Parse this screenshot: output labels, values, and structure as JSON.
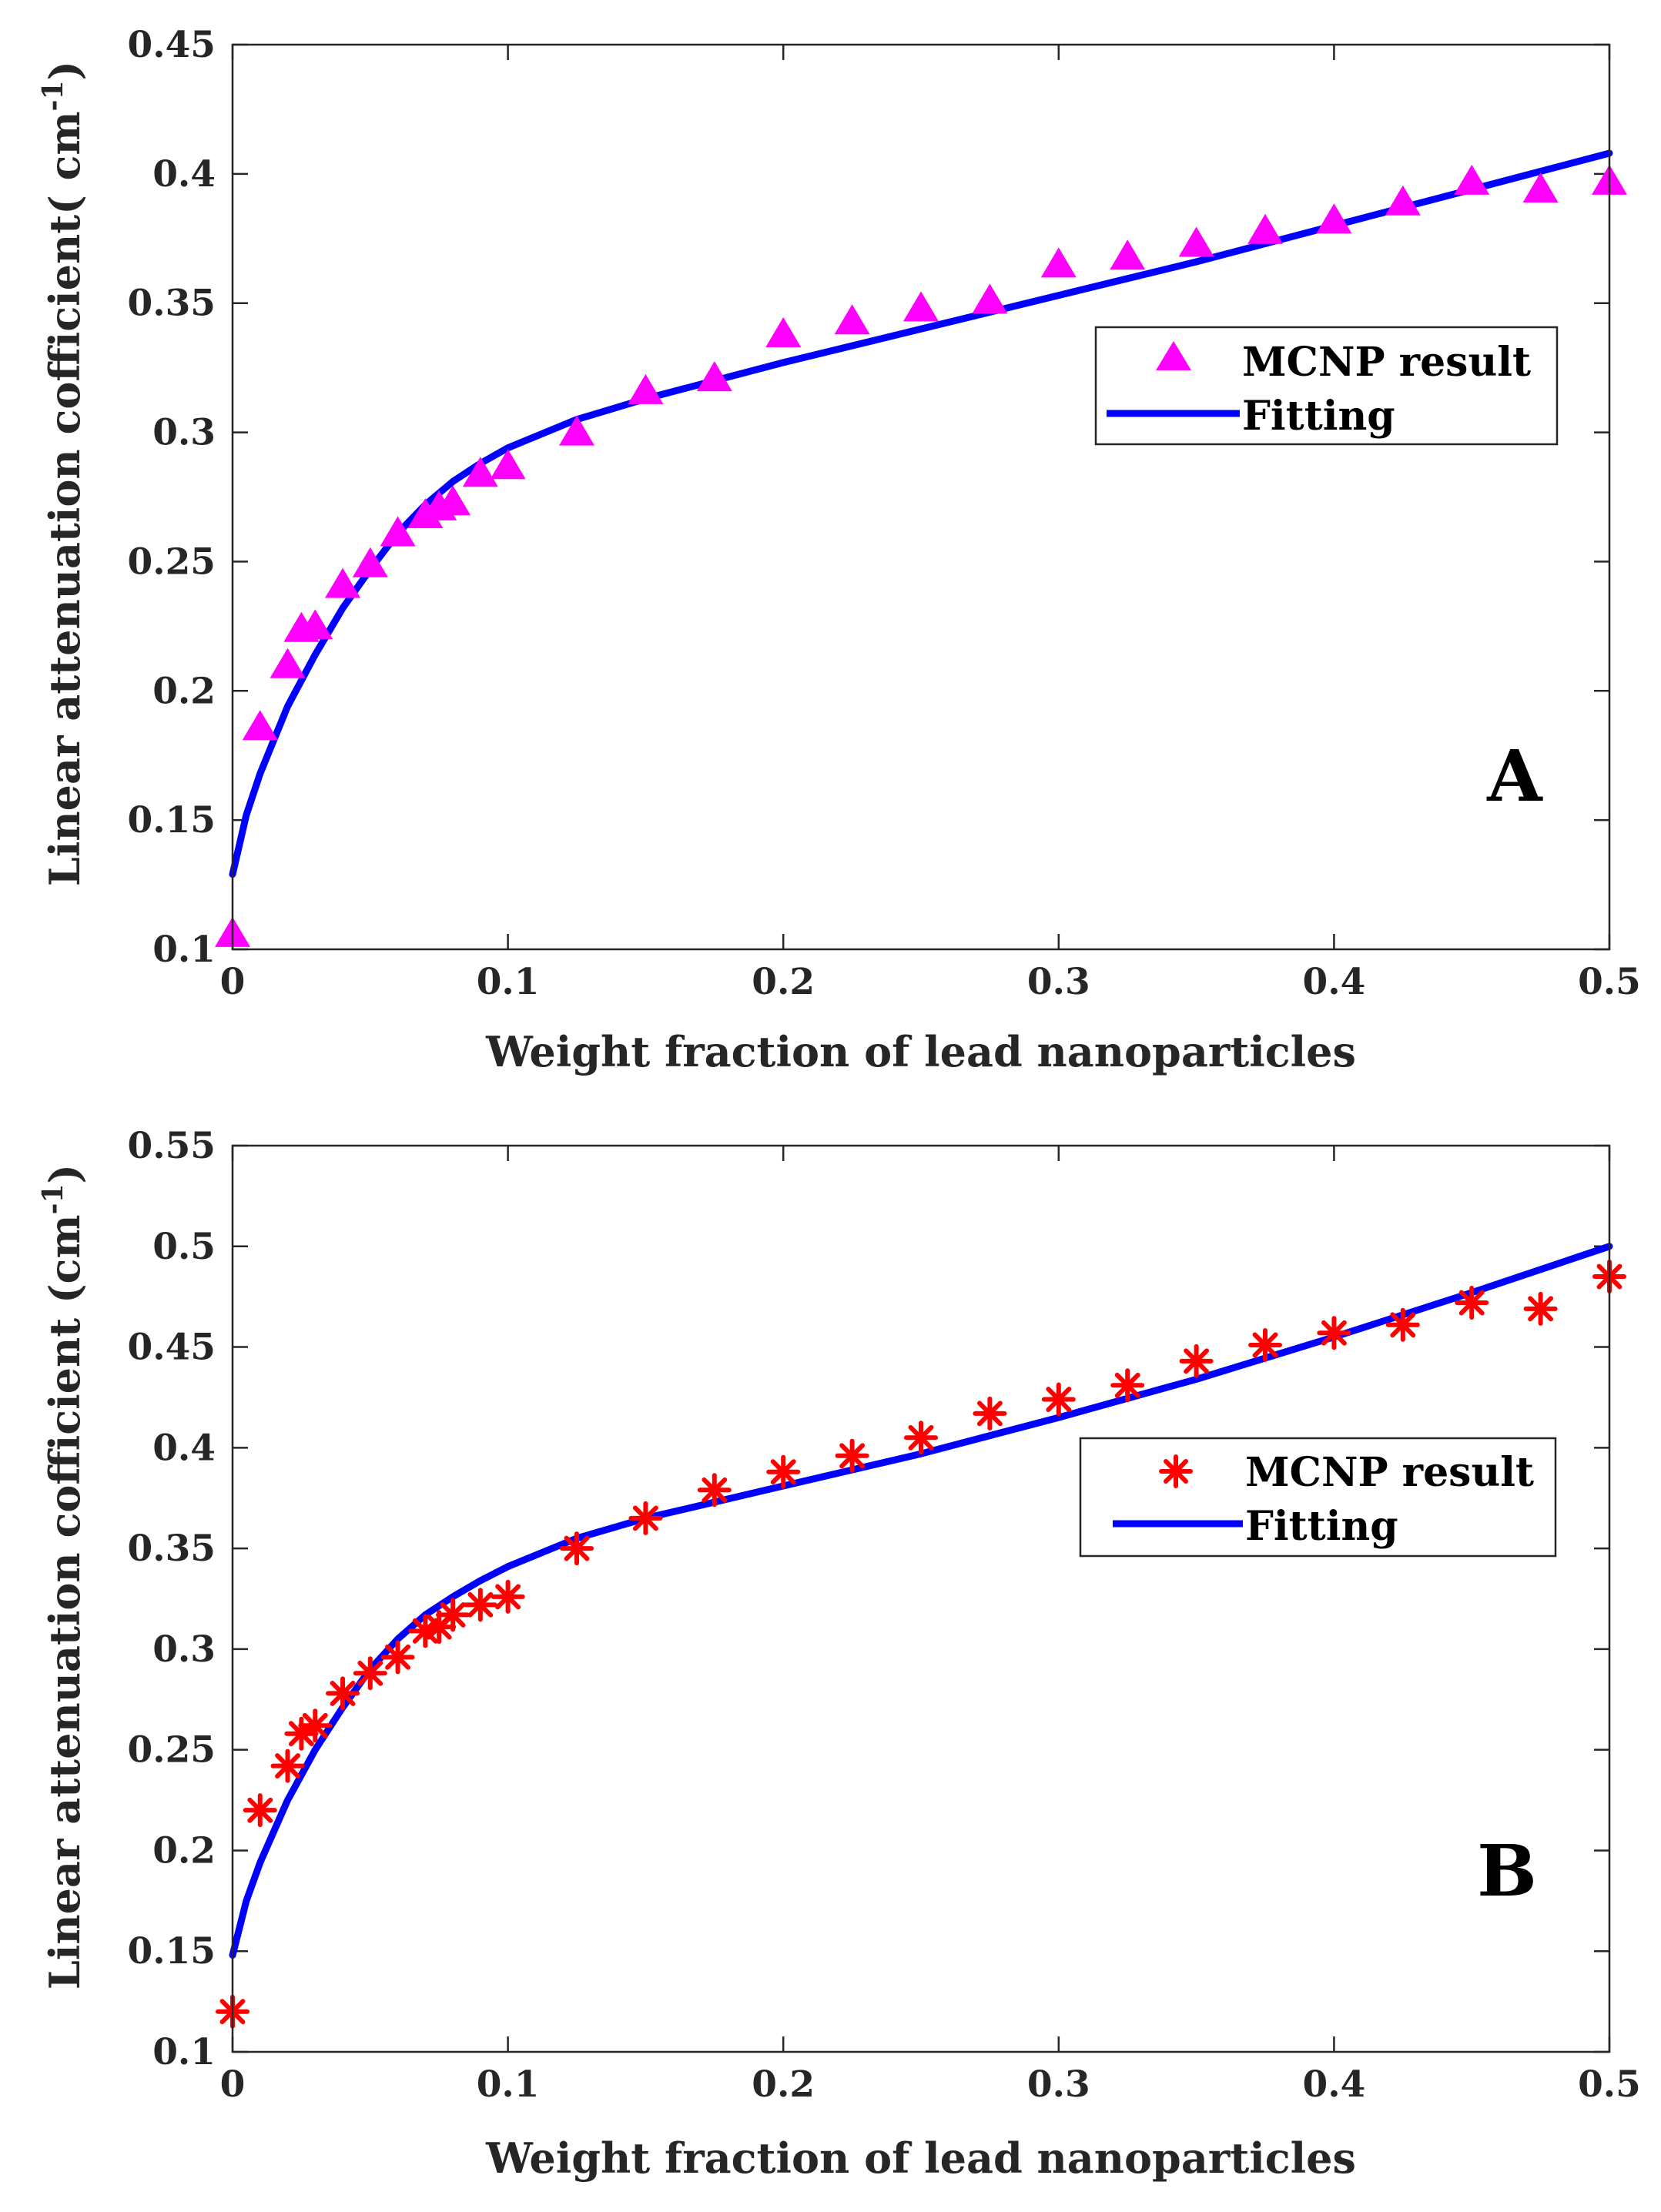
{
  "chart_data": [
    {
      "type": "scatter",
      "panel_label": "A",
      "xlabel": "Weight fraction of lead nanoparticles",
      "ylabel_main": "Linear attenuation cofficient( cm",
      "ylabel_sup": "-1",
      "ylabel_close": ")",
      "xlim": [
        0,
        0.5
      ],
      "ylim": [
        0.1,
        0.45
      ],
      "xticks": [
        0,
        0.1,
        0.2,
        0.3,
        0.4,
        0.5
      ],
      "xtick_labels": [
        "0",
        "0.1",
        "0.2",
        "0.3",
        "0.4",
        "0.5"
      ],
      "yticks": [
        0.1,
        0.15,
        0.2,
        0.25,
        0.3,
        0.35,
        0.4,
        0.45
      ],
      "ytick_labels": [
        "0.1",
        "0.15",
        "0.2",
        "0.25",
        "0.3",
        "0.35",
        "0.4",
        "0.45"
      ],
      "legend_position": "upper-right",
      "series": [
        {
          "name": "MCNP result",
          "kind": "markers",
          "marker": "triangle",
          "color": "#ff00ff",
          "x": [
            0,
            0.01,
            0.02,
            0.025,
            0.03,
            0.04,
            0.05,
            0.06,
            0.07,
            0.075,
            0.08,
            0.09,
            0.1,
            0.125,
            0.15,
            0.175,
            0.2,
            0.225,
            0.25,
            0.275,
            0.3,
            0.325,
            0.35,
            0.375,
            0.4,
            0.425,
            0.45,
            0.475,
            0.5
          ],
          "y": [
            0.106,
            0.186,
            0.21,
            0.224,
            0.225,
            0.241,
            0.249,
            0.261,
            0.268,
            0.271,
            0.273,
            0.284,
            0.287,
            0.3,
            0.316,
            0.321,
            0.338,
            0.343,
            0.348,
            0.351,
            0.365,
            0.368,
            0.373,
            0.378,
            0.382,
            0.389,
            0.397,
            0.394,
            0.397
          ]
        },
        {
          "name": "Fitting",
          "kind": "line",
          "color": "#0000ff",
          "x": [
            0,
            0.005,
            0.01,
            0.02,
            0.03,
            0.04,
            0.05,
            0.06,
            0.07,
            0.08,
            0.09,
            0.1,
            0.125,
            0.15,
            0.175,
            0.2,
            0.25,
            0.3,
            0.35,
            0.4,
            0.45,
            0.5
          ],
          "y": [
            0.129,
            0.152,
            0.168,
            0.194,
            0.214,
            0.232,
            0.247,
            0.261,
            0.272,
            0.281,
            0.288,
            0.294,
            0.305,
            0.313,
            0.32,
            0.327,
            0.34,
            0.353,
            0.366,
            0.38,
            0.394,
            0.408
          ]
        }
      ]
    },
    {
      "type": "scatter",
      "panel_label": "B",
      "xlabel": "Weight fraction of lead nanoparticles",
      "ylabel_main": "Linear attenuation cofficient (cm",
      "ylabel_sup": "-1",
      "ylabel_close": ")",
      "xlim": [
        0,
        0.5
      ],
      "ylim": [
        0.1,
        0.55
      ],
      "xticks": [
        0,
        0.1,
        0.2,
        0.3,
        0.4,
        0.5
      ],
      "xtick_labels": [
        "0",
        "0.1",
        "0.2",
        "0.3",
        "0.4",
        "0.5"
      ],
      "yticks": [
        0.1,
        0.15,
        0.2,
        0.25,
        0.3,
        0.35,
        0.4,
        0.45,
        0.5,
        0.55
      ],
      "ytick_labels": [
        "0.1",
        "0.15",
        "0.2",
        "0.25",
        "0.3",
        "0.35",
        "0.4",
        "0.45",
        "0.5",
        "0.55"
      ],
      "legend_position": "upper-right",
      "series": [
        {
          "name": "MCNP result",
          "kind": "markers",
          "marker": "asterisk",
          "color": "#ff0000",
          "x": [
            0,
            0.01,
            0.02,
            0.025,
            0.03,
            0.04,
            0.05,
            0.06,
            0.07,
            0.075,
            0.08,
            0.09,
            0.1,
            0.125,
            0.15,
            0.175,
            0.2,
            0.225,
            0.25,
            0.275,
            0.3,
            0.325,
            0.35,
            0.375,
            0.4,
            0.425,
            0.45,
            0.475,
            0.5
          ],
          "y": [
            0.12,
            0.22,
            0.242,
            0.258,
            0.262,
            0.278,
            0.288,
            0.296,
            0.309,
            0.311,
            0.317,
            0.322,
            0.326,
            0.35,
            0.365,
            0.379,
            0.388,
            0.396,
            0.405,
            0.417,
            0.424,
            0.431,
            0.443,
            0.451,
            0.457,
            0.461,
            0.472,
            0.469,
            0.485
          ]
        },
        {
          "name": "Fitting",
          "kind": "line",
          "color": "#0000ff",
          "x": [
            0,
            0.005,
            0.01,
            0.02,
            0.03,
            0.04,
            0.05,
            0.06,
            0.07,
            0.08,
            0.09,
            0.1,
            0.125,
            0.15,
            0.175,
            0.2,
            0.25,
            0.3,
            0.35,
            0.4,
            0.45,
            0.5
          ],
          "y": [
            0.148,
            0.175,
            0.194,
            0.225,
            0.25,
            0.271,
            0.29,
            0.305,
            0.317,
            0.326,
            0.334,
            0.341,
            0.355,
            0.365,
            0.373,
            0.381,
            0.397,
            0.415,
            0.434,
            0.455,
            0.477,
            0.5
          ]
        }
      ]
    }
  ]
}
